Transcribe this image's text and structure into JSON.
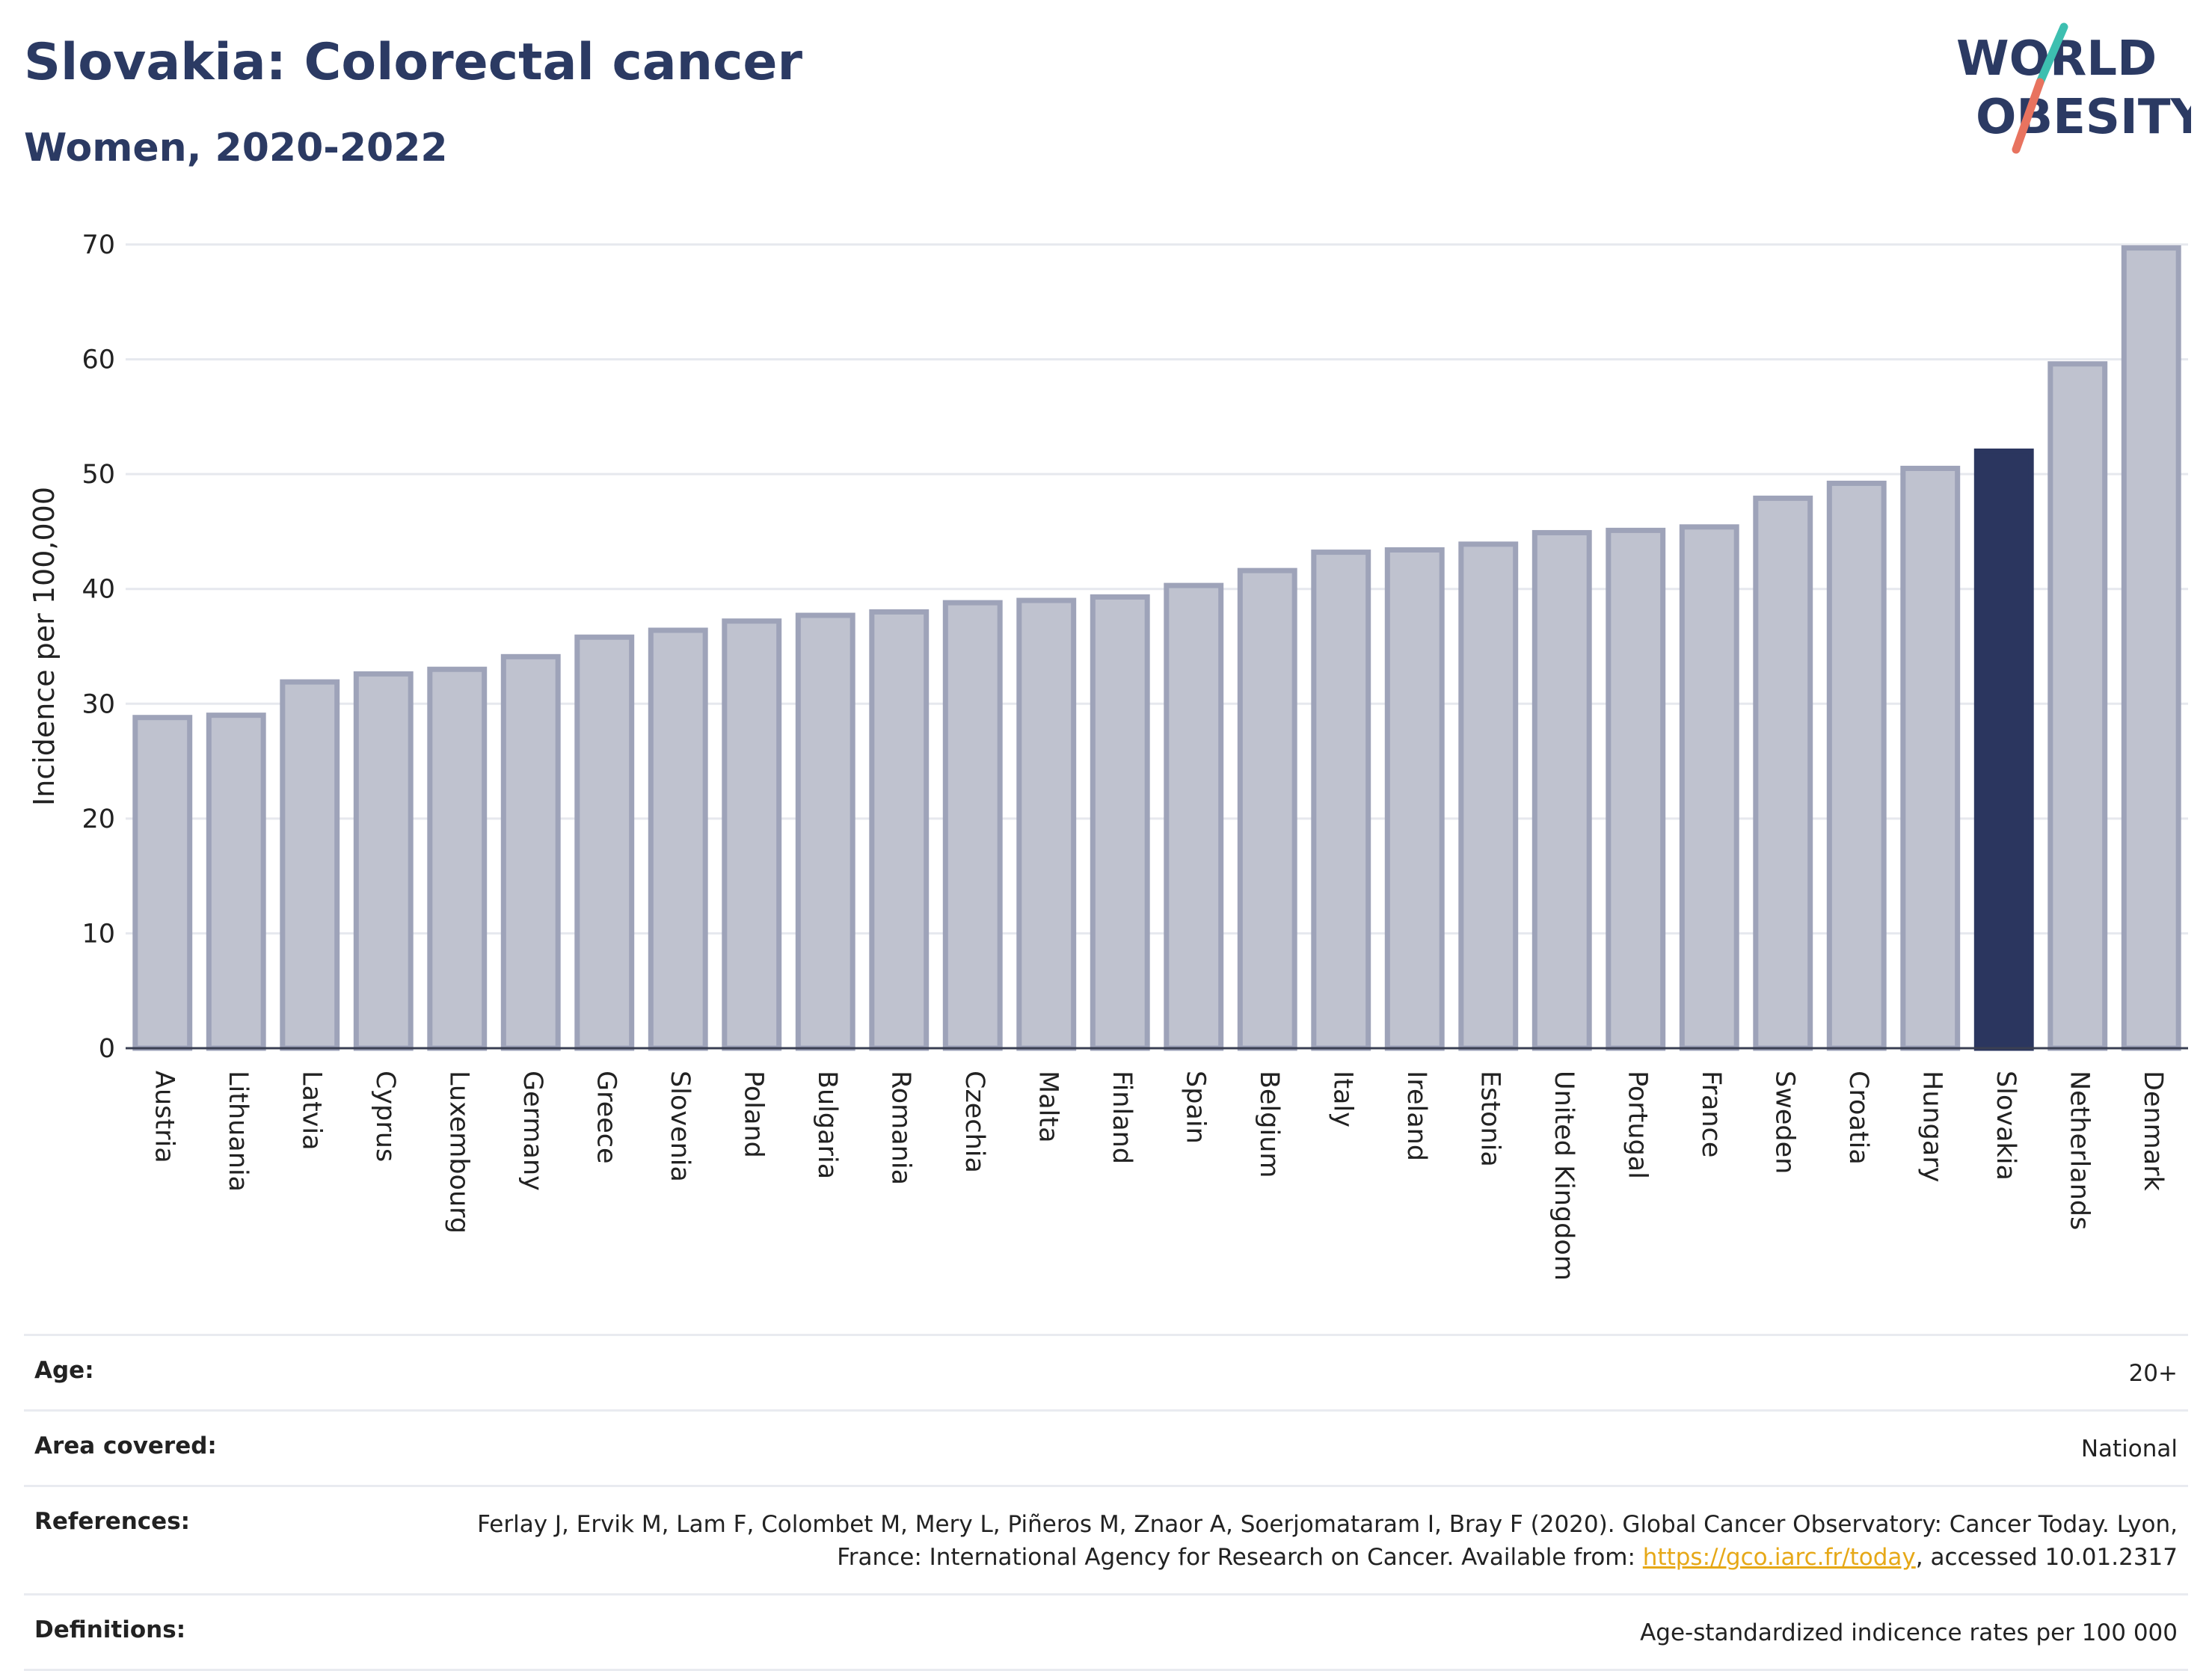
{
  "header": {
    "title": "Slovakia: Colorectal cancer",
    "subtitle": "Women, 2020-2022"
  },
  "logo": {
    "line1": "WORLD",
    "line2": "OBESITY",
    "slash_colors": [
      "#3dbfb0",
      "#e8735f"
    ]
  },
  "chart_data": {
    "type": "bar",
    "title": "Slovakia: Colorectal cancer",
    "subtitle": "Women, 2020-2022",
    "ylabel": "Incidence per 100,000",
    "xlabel": "",
    "ylim": [
      0,
      70
    ],
    "yticks": [
      0,
      10,
      20,
      30,
      40,
      50,
      60,
      70
    ],
    "grid": true,
    "highlight": "Slovakia",
    "colors": {
      "bar": "#bfc2cf",
      "bar_border": "#9ea3b9",
      "highlight": "#2b365f"
    },
    "categories": [
      "Austria",
      "Lithuania",
      "Latvia",
      "Cyprus",
      "Luxembourg",
      "Germany",
      "Greece",
      "Slovenia",
      "Poland",
      "Bulgaria",
      "Romania",
      "Czechia",
      "Malta",
      "Finland",
      "Spain",
      "Belgium",
      "Italy",
      "Ireland",
      "Estonia",
      "United Kingdom",
      "Portugal",
      "France",
      "Sweden",
      "Croatia",
      "Hungary",
      "Slovakia",
      "Netherlands",
      "Denmark"
    ],
    "values": [
      28.8,
      29.0,
      31.9,
      32.6,
      33.0,
      34.1,
      35.8,
      36.4,
      37.2,
      37.7,
      38.0,
      38.8,
      39.0,
      39.3,
      40.3,
      41.6,
      43.2,
      43.4,
      43.9,
      44.9,
      45.1,
      45.4,
      47.9,
      49.2,
      50.5,
      52.0,
      59.6,
      69.7
    ]
  },
  "info": {
    "age_label": "Age:",
    "age_value": "20+",
    "area_label": "Area covered:",
    "area_value": "National",
    "references_label": "References:",
    "references_text_before": "Ferlay J, Ervik M, Lam F, Colombet M, Mery L, Piñeros M, Znaor A, Soerjomataram I, Bray F (2020). Global Cancer Observatory: Cancer Today. Lyon, France: International Agency for Research on Cancer. Available from: ",
    "references_link": "https://gco.iarc.fr/today",
    "references_text_after": ", accessed 10.01.2317",
    "definitions_label": "Definitions:",
    "definitions_value": "Age-standardized indicence rates per 100 000"
  }
}
